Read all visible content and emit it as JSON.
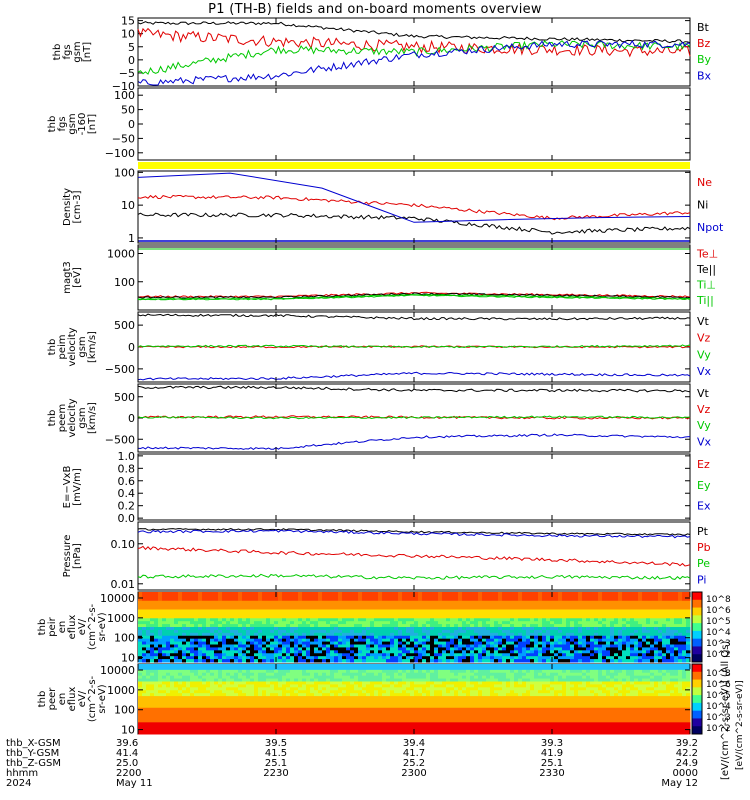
{
  "title": "P1 (TH-B) fields and on-board moments overview",
  "colors": {
    "black": "#000000",
    "red": "#e00000",
    "green": "#00c800",
    "blue": "#0000d0",
    "yellow": "#ffff00"
  },
  "panels": [
    {
      "id": "fgs",
      "ylabel": [
        "thb",
        "fgs",
        "gsm",
        "[nT]"
      ],
      "yticks": [
        {
          "v": 15,
          "t": "15"
        },
        {
          "v": 10,
          "t": "10"
        },
        {
          "v": 5,
          "t": "5"
        },
        {
          "v": 0,
          "t": "0"
        },
        {
          "v": -5,
          "t": "−5"
        },
        {
          "v": -10,
          "t": "−10"
        }
      ],
      "ylim": [
        -10,
        16
      ],
      "log": false,
      "legend": [
        {
          "t": "Bt",
          "c": "black"
        },
        {
          "t": "Bz",
          "c": "red"
        },
        {
          "t": "By",
          "c": "green"
        },
        {
          "t": "Bx",
          "c": "blue"
        }
      ]
    },
    {
      "id": "fgs-dsl",
      "ylabel": [
        "thb",
        "fgs",
        "gsm",
        "-160",
        "[nT]"
      ],
      "yticks": [
        {
          "v": 100,
          "t": "100"
        },
        {
          "v": 50,
          "t": "50"
        },
        {
          "v": 0,
          "t": "0"
        },
        {
          "v": -50,
          "t": "−50"
        },
        {
          "v": -100,
          "t": "−100"
        }
      ],
      "ylim": [
        -125,
        125
      ],
      "log": false,
      "legend": []
    },
    {
      "id": "density",
      "ylabel": [
        "Density",
        "[cm-3]"
      ],
      "yticks": [
        {
          "v": 100,
          "t": "100"
        },
        {
          "v": 10,
          "t": "10"
        },
        {
          "v": 1,
          "t": "1"
        }
      ],
      "ylim": [
        0.7,
        110
      ],
      "log": true,
      "legend": [
        {
          "t": "Ne",
          "c": "red"
        },
        {
          "t": "Ni",
          "c": "black"
        },
        {
          "t": "Npot",
          "c": "blue"
        }
      ]
    },
    {
      "id": "temp",
      "ylabel": [
        "magt3",
        "[eV]"
      ],
      "yticks": [
        {
          "v": 1000,
          "t": "1000"
        },
        {
          "v": 100,
          "t": "100"
        }
      ],
      "ylim": [
        10,
        2000
      ],
      "log": true,
      "legend": [
        {
          "t": "Te⊥",
          "c": "red"
        },
        {
          "t": "Te||",
          "c": "black"
        },
        {
          "t": "Ti⊥",
          "c": "green"
        },
        {
          "t": "Ti||",
          "c": "green"
        }
      ]
    },
    {
      "id": "peim",
      "ylabel": [
        "thb",
        "peim",
        "velocity",
        "gsm",
        "[km/s]"
      ],
      "yticks": [
        {
          "v": 500,
          "t": "500"
        },
        {
          "v": 0,
          "t": "0"
        },
        {
          "v": -500,
          "t": "−500"
        }
      ],
      "ylim": [
        -800,
        800
      ],
      "log": false,
      "legend": [
        {
          "t": "Vt",
          "c": "black"
        },
        {
          "t": "Vz",
          "c": "red"
        },
        {
          "t": "Vy",
          "c": "green"
        },
        {
          "t": "Vx",
          "c": "blue"
        }
      ]
    },
    {
      "id": "peem",
      "ylabel": [
        "thb",
        "peem",
        "velocity",
        "gsm",
        "[km/s]"
      ],
      "yticks": [
        {
          "v": 500,
          "t": "500"
        },
        {
          "v": 0,
          "t": "0"
        },
        {
          "v": -500,
          "t": "−500"
        }
      ],
      "ylim": [
        -800,
        800
      ],
      "log": false,
      "legend": [
        {
          "t": "Vt",
          "c": "black"
        },
        {
          "t": "Vz",
          "c": "red"
        },
        {
          "t": "Vy",
          "c": "green"
        },
        {
          "t": "Vx",
          "c": "blue"
        }
      ]
    },
    {
      "id": "efield",
      "ylabel": [
        "E=−VxB",
        "[mV/m]"
      ],
      "yticks": [
        {
          "v": 1.0,
          "t": "1.0"
        },
        {
          "v": 0.8,
          "t": "0.8"
        },
        {
          "v": 0.6,
          "t": "0.6"
        },
        {
          "v": 0.4,
          "t": "0.4"
        },
        {
          "v": 0.2,
          "t": "0.2"
        },
        {
          "v": 0.0,
          "t": "0.0"
        }
      ],
      "ylim": [
        -0.03,
        1.03
      ],
      "log": false,
      "legend": [
        {
          "t": "Ez",
          "c": "red"
        },
        {
          "t": "Ey",
          "c": "green"
        },
        {
          "t": "Ex",
          "c": "blue"
        }
      ]
    },
    {
      "id": "pressure",
      "ylabel": [
        "Pressure",
        "[nPa]"
      ],
      "yticks": [
        {
          "v": 0.1,
          "t": "0.10"
        },
        {
          "v": 0.01,
          "t": "0.01"
        }
      ],
      "ylim": [
        0.007,
        0.35
      ],
      "log": true,
      "legend": [
        {
          "t": "Pt",
          "c": "black"
        },
        {
          "t": "Pb",
          "c": "red"
        },
        {
          "t": "Pe",
          "c": "green"
        },
        {
          "t": "Pi",
          "c": "blue"
        }
      ]
    },
    {
      "id": "peir",
      "ylabel": [
        "thb",
        "peir",
        "en",
        "eflux",
        "eV/",
        "(cm^2-s-",
        "sr-eV)"
      ],
      "yticks": [
        {
          "v": 10000,
          "t": "10000"
        },
        {
          "v": 1000,
          "t": "1000"
        },
        {
          "v": 100,
          "t": "100"
        },
        {
          "v": 10,
          "t": "10"
        }
      ],
      "ylim": [
        6,
        20000
      ],
      "log": true,
      "legend": []
    },
    {
      "id": "peer",
      "ylabel": [
        "thb",
        "peer",
        "en",
        "eflux",
        "eV/",
        "(cm^2-s-",
        "sr-eV)"
      ],
      "yticks": [
        {
          "v": 10000,
          "t": "10000"
        },
        {
          "v": 1000,
          "t": "1000"
        },
        {
          "v": 100,
          "t": "100"
        },
        {
          "v": 10,
          "t": "10"
        }
      ],
      "ylim": [
        6,
        20000
      ],
      "log": true,
      "legend": []
    }
  ],
  "colorbar": {
    "label": "[eV/(cm^2-s-sr-eV)] (All Qs)",
    "label2": "[eV/(cm^2-s-sr-eV)]",
    "ticks": [
      "10^8",
      "10^6",
      "10^5",
      "10^4",
      "10^3",
      "10^2"
    ]
  },
  "xaxis": {
    "rows": [
      {
        "label": "thb_X-GSM",
        "values": [
          "39.6",
          "39.5",
          "39.4",
          "39.3",
          "39.2"
        ]
      },
      {
        "label": "thb_Y-GSM",
        "values": [
          "41.4",
          "41.5",
          "41.7",
          "41.9",
          "42.2"
        ]
      },
      {
        "label": "thb_Z-GSM",
        "values": [
          "25.0",
          "25.1",
          "25.2",
          "25.1",
          "24.9"
        ]
      },
      {
        "label": "hhmm",
        "values": [
          "2200",
          "2230",
          "2300",
          "2330",
          "0000"
        ]
      },
      {
        "label": "2024",
        "values": [
          "May 11",
          "",
          "",
          "",
          "May 12"
        ]
      }
    ]
  },
  "chart_data": [
    {
      "type": "line",
      "title": "P1 (TH-B) fields and on-board moments overview",
      "panel": "fgs",
      "x": [
        "2200",
        "2230",
        "2300",
        "2330",
        "0000"
      ],
      "ylim": [
        -10,
        16
      ],
      "series": [
        {
          "name": "Bt",
          "values": [
            14,
            14,
            9,
            8,
            7
          ]
        },
        {
          "name": "Bz",
          "values": [
            10,
            7,
            5,
            4,
            3
          ]
        },
        {
          "name": "By",
          "values": [
            -5,
            4,
            3,
            6,
            5
          ]
        },
        {
          "name": "Bx",
          "values": [
            -9,
            -6,
            2,
            6,
            6
          ]
        }
      ]
    },
    {
      "type": "line",
      "panel": "density",
      "x": [
        "2200",
        "2230",
        "2300",
        "2330",
        "0000"
      ],
      "ylim": [
        0.7,
        110
      ],
      "log": true,
      "series": [
        {
          "name": "Ne",
          "values": [
            18,
            17,
            10,
            4,
            6
          ]
        },
        {
          "name": "Ni",
          "values": [
            5,
            5,
            4,
            1.5,
            2
          ]
        },
        {
          "name": "Npot",
          "values": [
            70,
            110,
            3,
            4,
            4.5
          ]
        }
      ]
    },
    {
      "type": "line",
      "panel": "temp",
      "x": [
        "2200",
        "2230",
        "2300",
        "2330",
        "0000"
      ],
      "ylim": [
        10,
        2000
      ],
      "log": true,
      "series": [
        {
          "name": "Te⊥",
          "values": [
            30,
            30,
            40,
            35,
            30
          ]
        },
        {
          "name": "Te||",
          "values": [
            28,
            28,
            38,
            33,
            28
          ]
        },
        {
          "name": "Ti⊥",
          "values": [
            25,
            25,
            35,
            30,
            25
          ]
        },
        {
          "name": "Ti||",
          "values": [
            24,
            24,
            33,
            28,
            24
          ]
        }
      ]
    },
    {
      "type": "line",
      "panel": "peim",
      "x": [
        "2200",
        "2230",
        "2300",
        "2330",
        "0000"
      ],
      "ylim": [
        -800,
        800
      ],
      "series": [
        {
          "name": "Vt",
          "values": [
            730,
            720,
            650,
            640,
            660
          ]
        },
        {
          "name": "Vz",
          "values": [
            0,
            0,
            10,
            0,
            0
          ]
        },
        {
          "name": "Vy",
          "values": [
            20,
            20,
            0,
            10,
            30
          ]
        },
        {
          "name": "Vx",
          "values": [
            -730,
            -720,
            -600,
            -620,
            -650
          ]
        }
      ]
    },
    {
      "type": "line",
      "panel": "peem",
      "x": [
        "2200",
        "2230",
        "2300",
        "2330",
        "0000"
      ],
      "ylim": [
        -800,
        800
      ],
      "series": [
        {
          "name": "Vt",
          "values": [
            720,
            720,
            650,
            650,
            640
          ]
        },
        {
          "name": "Vz",
          "values": [
            20,
            30,
            20,
            0,
            0
          ]
        },
        {
          "name": "Vy",
          "values": [
            20,
            0,
            10,
            30,
            10
          ]
        },
        {
          "name": "Vx",
          "values": [
            -700,
            -720,
            -450,
            -400,
            -450
          ]
        }
      ]
    },
    {
      "type": "line",
      "panel": "pressure",
      "x": [
        "2200",
        "2230",
        "2300",
        "2330",
        "0000"
      ],
      "ylim": [
        0.007,
        0.35
      ],
      "log": true,
      "series": [
        {
          "name": "Pt",
          "values": [
            0.23,
            0.23,
            0.2,
            0.18,
            0.17
          ]
        },
        {
          "name": "Pb",
          "values": [
            0.08,
            0.06,
            0.05,
            0.04,
            0.03
          ]
        },
        {
          "name": "Pe",
          "values": [
            0.015,
            0.016,
            0.014,
            0.015,
            0.014
          ]
        },
        {
          "name": "Pi",
          "values": [
            0.2,
            0.21,
            0.18,
            0.16,
            0.15
          ]
        }
      ]
    },
    {
      "type": "heatmap",
      "panel": "peir",
      "x": [
        "2200",
        "2230",
        "2300",
        "2330",
        "0000"
      ],
      "ylim": [
        6,
        20000
      ],
      "log": true
    },
    {
      "type": "heatmap",
      "panel": "peer",
      "x": [
        "2200",
        "2230",
        "2300",
        "2330",
        "0000"
      ],
      "ylim": [
        6,
        20000
      ],
      "log": true
    }
  ]
}
